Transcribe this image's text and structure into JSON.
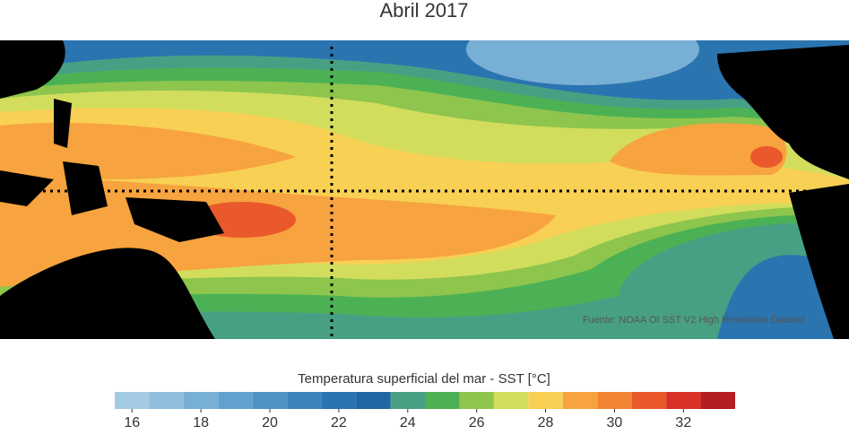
{
  "title": "Abril 2017",
  "source": "Fuente: NOAA OI SST V2 High Resolution Dataset",
  "colorbar": {
    "label": "Temperatura superficial del mar - SST  [°C]",
    "bins": [
      15.5,
      16.5,
      17.5,
      18.5,
      19.5,
      20.5,
      21.5,
      22.5,
      23.5,
      24.5,
      25.5,
      26.5,
      27.5,
      28.5,
      29.5,
      30.5,
      31.5,
      32.5,
      33.5
    ],
    "colors": [
      "#a5cbe4",
      "#8fbddc",
      "#78afd5",
      "#62a1cd",
      "#4d92c4",
      "#3a83bb",
      "#2a74b0",
      "#1f66a3",
      "#47a084",
      "#4cb155",
      "#8dc54d",
      "#d2dd5d",
      "#f7d054",
      "#f7a33f",
      "#f38433",
      "#e9592b",
      "#d93028",
      "#b41d22"
    ],
    "ticks": [
      16,
      18,
      20,
      22,
      24,
      26,
      28,
      30,
      32
    ]
  }
}
